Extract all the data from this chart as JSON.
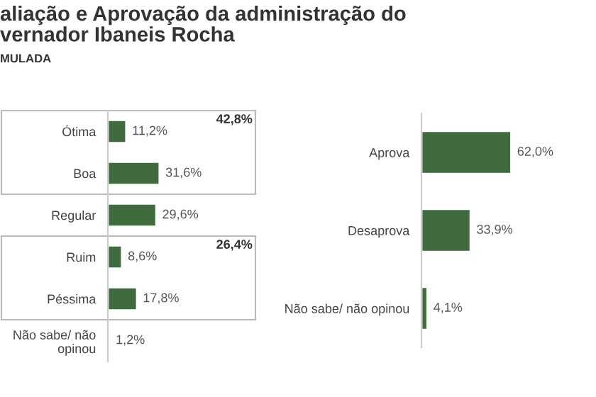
{
  "chart_data": [
    {
      "type": "bar",
      "title": "aliação e Aprovação da administração do\nvernador Ibaneis Rocha",
      "subtitle": "MULADA",
      "orientation": "horizontal",
      "categories": [
        "Ótima",
        "Boa",
        "Regular",
        "Ruim",
        "Péssima",
        "Não sabe/ não\nopinou"
      ],
      "values": [
        11.2,
        31.6,
        29.6,
        8.6,
        17.8,
        1.2
      ],
      "value_labels": [
        "11,2%",
        "31,6%",
        "29,6%",
        "8,6%",
        "17,8%",
        "1,2%"
      ],
      "color": "#3f6b3f",
      "annotations": [
        "42,8%",
        "26,4%"
      ]
    },
    {
      "type": "bar",
      "orientation": "horizontal",
      "categories": [
        "Aprova",
        "Desaprova",
        "Não sabe/ não opinou"
      ],
      "values": [
        62.0,
        33.9,
        4.1
      ],
      "value_labels": [
        "62,0%",
        "33,9%",
        "4,1%"
      ],
      "color": "#3f6b3f"
    }
  ]
}
